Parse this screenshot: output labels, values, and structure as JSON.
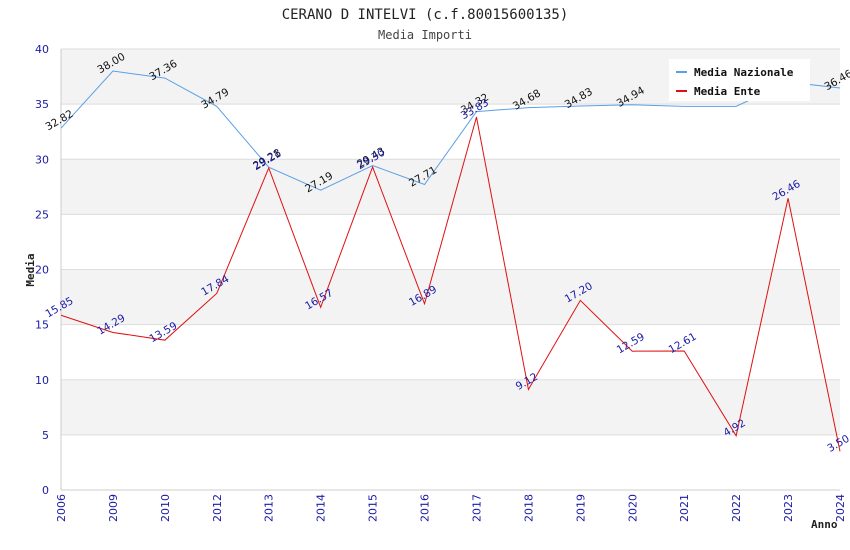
{
  "chart_data": {
    "type": "line",
    "title": "CERANO D INTELVI (c.f.80015600135)",
    "subtitle": "Media Importi",
    "xlabel": "Anno",
    "ylabel": "Media",
    "ylim": [
      0,
      40
    ],
    "yticks": [
      0,
      5,
      10,
      15,
      20,
      25,
      30,
      35,
      40
    ],
    "categories": [
      "2006",
      "2009",
      "2010",
      "2012",
      "2013",
      "2014",
      "2015",
      "2016",
      "2017",
      "2018",
      "2019",
      "2020",
      "2021",
      "2022",
      "2023",
      "2024"
    ],
    "series": [
      {
        "name": "Media Nazionale",
        "color": "#5aa0e6",
        "values": [
          32.82,
          38.0,
          37.36,
          34.79,
          29.28,
          27.19,
          29.43,
          27.71,
          34.32,
          34.68,
          34.83,
          34.94,
          34.8,
          34.8,
          37.0,
          36.46
        ],
        "labels": [
          "32.82",
          "38.00",
          "37.36",
          "34.79",
          "29.28",
          "27.19",
          "29.43",
          "27.71",
          "34.32",
          "34.68",
          "34.83",
          "34.94",
          "",
          "",
          "",
          "36.46"
        ]
      },
      {
        "name": "Media Ente",
        "color": "#e01010",
        "values": [
          15.85,
          14.29,
          13.59,
          17.84,
          29.21,
          16.57,
          29.3,
          16.89,
          33.83,
          9.12,
          17.2,
          12.59,
          12.61,
          4.92,
          26.46,
          3.5
        ],
        "labels": [
          "15.85",
          "14.29",
          "13.59",
          "17.84",
          "29.21",
          "16.57",
          "29.30",
          "16.89",
          "33.83",
          "9.12",
          "17.20",
          "12.59",
          "12.61",
          "4.92",
          "26.46",
          "3.50"
        ]
      }
    ],
    "legend_position": "top-right"
  }
}
